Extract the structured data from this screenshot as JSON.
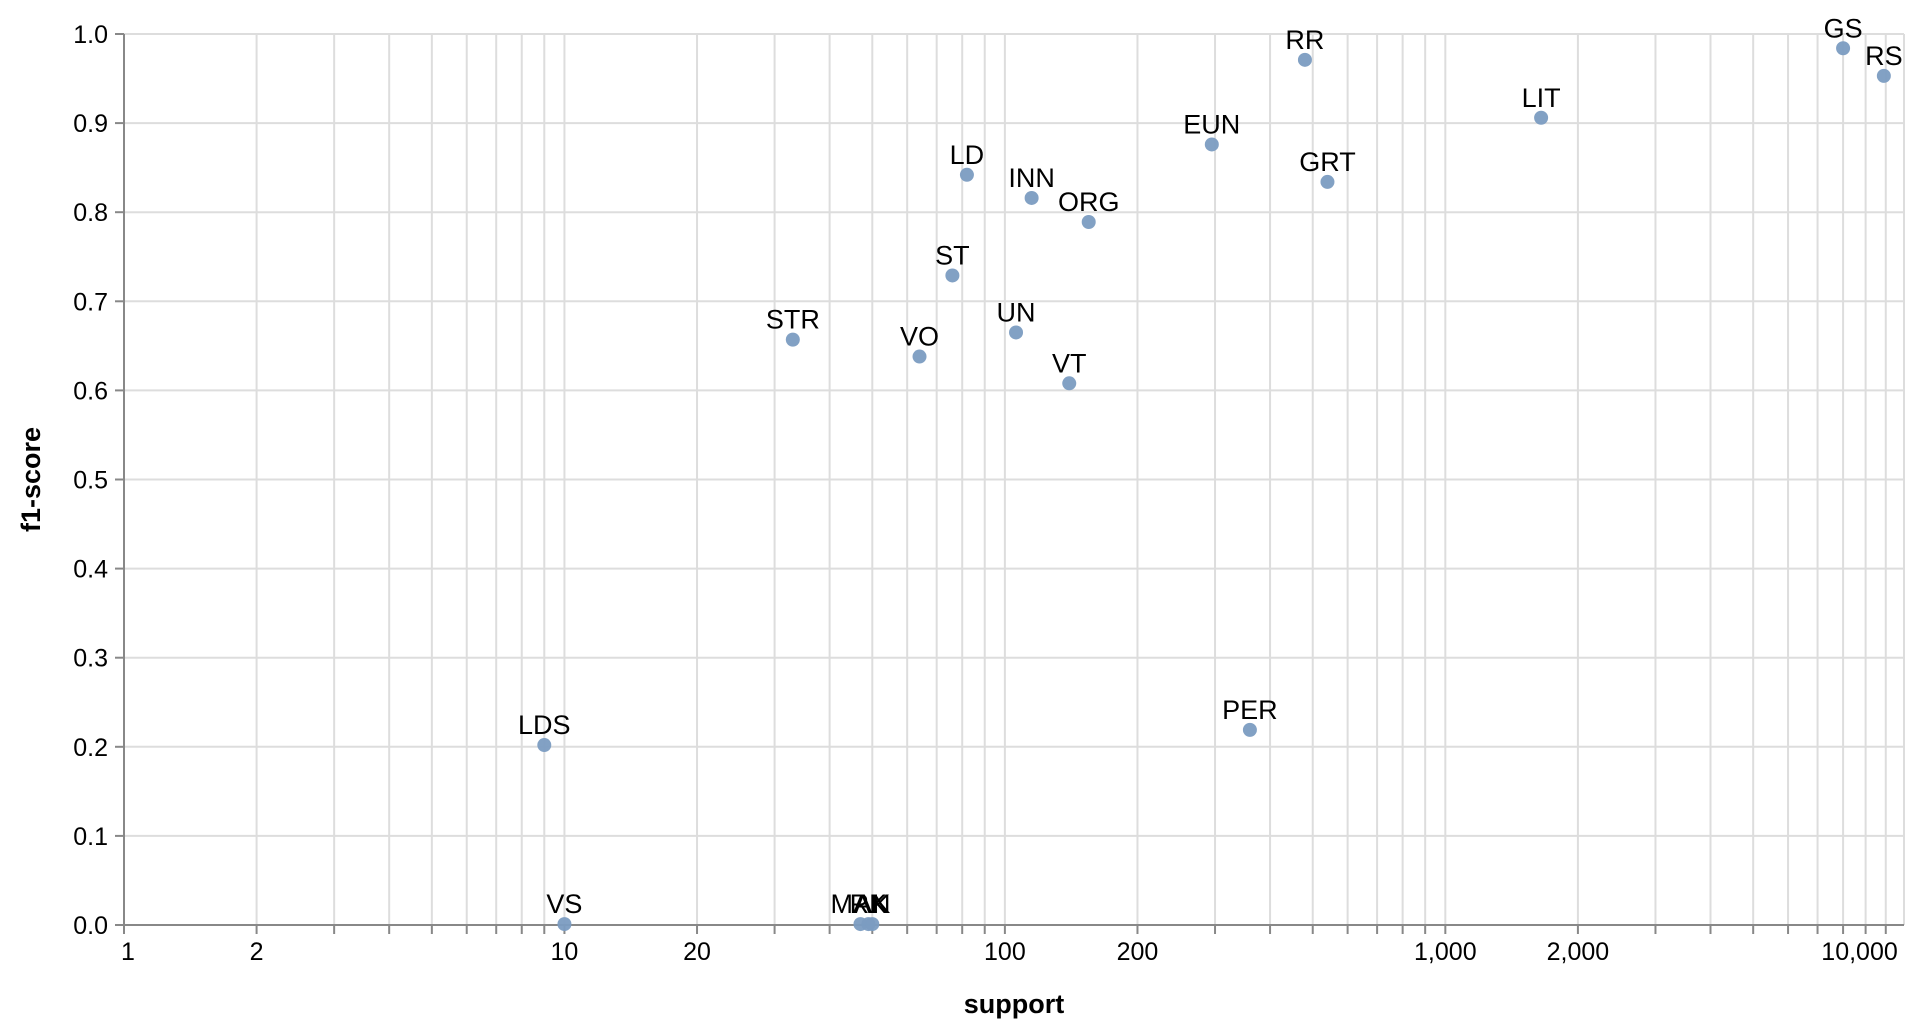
{
  "chart_data": {
    "type": "scatter",
    "title": "",
    "xlabel": "support",
    "ylabel": "f1-score",
    "xscale": "log",
    "xlim": [
      1,
      11000
    ],
    "ylim": [
      0,
      1
    ],
    "grid": true,
    "marker_color": "#7b9cc1",
    "x_ticks": [
      {
        "value": 1,
        "label": "1"
      },
      {
        "value": 2,
        "label": "2"
      },
      {
        "value": 10,
        "label": "10"
      },
      {
        "value": 20,
        "label": "20"
      },
      {
        "value": 100,
        "label": "100"
      },
      {
        "value": 200,
        "label": "200"
      },
      {
        "value": 1000,
        "label": "1,000"
      },
      {
        "value": 2000,
        "label": "2,000"
      },
      {
        "value": 10000,
        "label": "10,000"
      }
    ],
    "y_ticks": [
      {
        "value": 0.0,
        "label": "0.0"
      },
      {
        "value": 0.1,
        "label": "0.1"
      },
      {
        "value": 0.2,
        "label": "0.2"
      },
      {
        "value": 0.3,
        "label": "0.3"
      },
      {
        "value": 0.4,
        "label": "0.4"
      },
      {
        "value": 0.5,
        "label": "0.5"
      },
      {
        "value": 0.6,
        "label": "0.6"
      },
      {
        "value": 0.7,
        "label": "0.7"
      },
      {
        "value": 0.8,
        "label": "0.8"
      },
      {
        "value": 0.9,
        "label": "0.9"
      },
      {
        "value": 1.0,
        "label": "1.0"
      }
    ],
    "points": [
      {
        "label": "GS",
        "x": 8000,
        "y": 0.984
      },
      {
        "label": "RS",
        "x": 9900,
        "y": 0.953
      },
      {
        "label": "RR",
        "x": 480,
        "y": 0.971
      },
      {
        "label": "LIT",
        "x": 1650,
        "y": 0.906
      },
      {
        "label": "EUN",
        "x": 295,
        "y": 0.876
      },
      {
        "label": "GRT",
        "x": 540,
        "y": 0.834
      },
      {
        "label": "LD",
        "x": 82,
        "y": 0.842
      },
      {
        "label": "INN",
        "x": 115,
        "y": 0.816
      },
      {
        "label": "ORG",
        "x": 155,
        "y": 0.789
      },
      {
        "label": "ST",
        "x": 76,
        "y": 0.729
      },
      {
        "label": "STR",
        "x": 33,
        "y": 0.657
      },
      {
        "label": "VO",
        "x": 64,
        "y": 0.638
      },
      {
        "label": "UN",
        "x": 106,
        "y": 0.665
      },
      {
        "label": "VT",
        "x": 140,
        "y": 0.608
      },
      {
        "label": "PER",
        "x": 360,
        "y": 0.219
      },
      {
        "label": "LDS",
        "x": 9,
        "y": 0.202
      },
      {
        "label": "VS",
        "x": 10,
        "y": 0.001
      },
      {
        "label": "MAN",
        "x": 47,
        "y": 0.001
      },
      {
        "label": "RK",
        "x": 49,
        "y": 0.001
      },
      {
        "label": "AK",
        "x": 50,
        "y": 0.001
      }
    ]
  }
}
